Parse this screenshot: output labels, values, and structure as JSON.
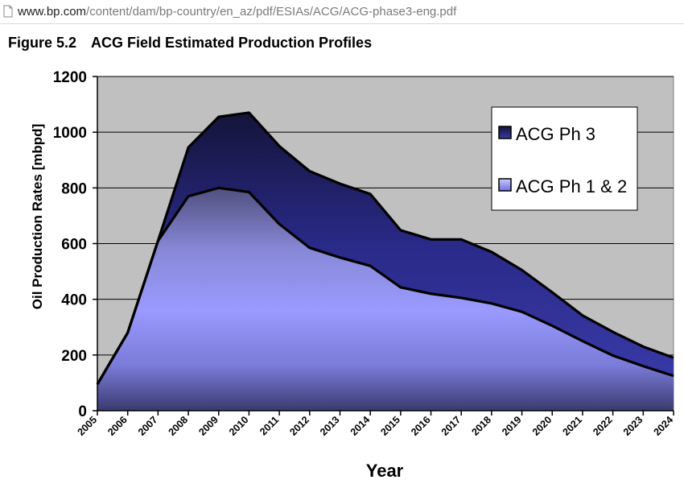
{
  "browser": {
    "url_host": "www.bp.com",
    "url_path": "/content/dam/bp-country/en_az/pdf/ESIAs/ACG/ACG-phase3-eng.pdf",
    "page_icon": "document-icon"
  },
  "figure": {
    "number": "Figure 5.2",
    "title": "ACG Field Estimated Production Profiles"
  },
  "chart_data": {
    "type": "area",
    "stacked": true,
    "x": [
      "2005",
      "2006",
      "2007",
      "2008",
      "2009",
      "2010",
      "2011",
      "2012",
      "2013",
      "2014",
      "2015",
      "2016",
      "2017",
      "2018",
      "2019",
      "2020",
      "2021",
      "2022",
      "2023",
      "2024"
    ],
    "series": [
      {
        "name": "ACG Ph 1 & 2",
        "values": [
          95,
          280,
          610,
          770,
          800,
          785,
          670,
          585,
          550,
          520,
          443,
          420,
          405,
          385,
          355,
          305,
          250,
          198,
          160,
          125
        ],
        "color": "#9999ff"
      },
      {
        "name": "ACG Ph 3",
        "values": [
          0,
          0,
          0,
          175,
          255,
          285,
          280,
          275,
          265,
          258,
          205,
          195,
          210,
          185,
          150,
          120,
          92,
          85,
          70,
          65
        ],
        "color": "#2a2a8c"
      }
    ],
    "xlabel": "Year",
    "ylabel": "Oil Production Rates [mbpd]",
    "ylim": [
      0,
      1200
    ],
    "yticks": [
      "0",
      "200",
      "400",
      "600",
      "800",
      "1000",
      "1200"
    ],
    "grid": true,
    "legend_position": "top-right",
    "plot_background": "#c0c0c0"
  }
}
